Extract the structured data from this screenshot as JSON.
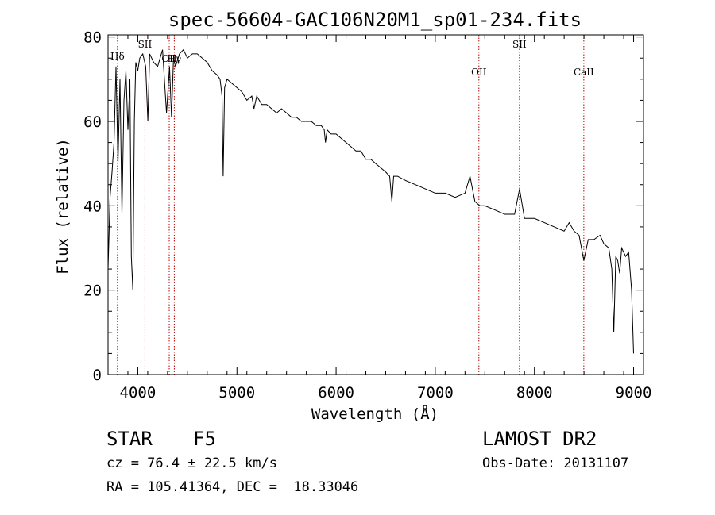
{
  "chart_data": {
    "type": "line",
    "title": "spec-56604-GAC106N20M1_sp01-234.fits",
    "xlabel": "Wavelength (Å)",
    "ylabel": "Flux (relative)",
    "xlim": [
      3700,
      9100
    ],
    "ylim": [
      0,
      80.5
    ],
    "xticks": [
      4000,
      5000,
      6000,
      7000,
      8000,
      9000
    ],
    "yticks": [
      0,
      20,
      40,
      60,
      80
    ],
    "grid": false,
    "series": [
      {
        "x": [
          3700,
          3720,
          3740,
          3760,
          3780,
          3800,
          3820,
          3840,
          3860,
          3880,
          3900,
          3920,
          3935,
          3950,
          3965,
          3980,
          4000,
          4020,
          4050,
          4080,
          4101,
          4120,
          4160,
          4200,
          4250,
          4290,
          4320,
          4340,
          4360,
          4380,
          4420,
          4460,
          4500,
          4550,
          4600,
          4650,
          4700,
          4750,
          4800,
          4830,
          4850,
          4861,
          4875,
          4900,
          4950,
          5000,
          5050,
          5100,
          5150,
          5172,
          5200,
          5250,
          5300,
          5350,
          5400,
          5450,
          5500,
          5550,
          5600,
          5650,
          5700,
          5750,
          5800,
          5850,
          5880,
          5893,
          5910,
          5950,
          6000,
          6050,
          6100,
          6150,
          6200,
          6250,
          6300,
          6350,
          6400,
          6450,
          6500,
          6540,
          6563,
          6580,
          6620,
          6700,
          6800,
          6900,
          7000,
          7100,
          7200,
          7300,
          7350,
          7400,
          7450,
          7500,
          7600,
          7700,
          7800,
          7850,
          7900,
          8000,
          8100,
          8200,
          8300,
          8350,
          8400,
          8450,
          8498,
          8542,
          8600,
          8662,
          8700,
          8750,
          8780,
          8800,
          8820,
          8840,
          8860,
          8880,
          8900,
          8920,
          8950,
          8980,
          9000
        ],
        "y": [
          25,
          42,
          48,
          55,
          73,
          50,
          70,
          38,
          65,
          72,
          58,
          70,
          28,
          20,
          60,
          74,
          72,
          75,
          76,
          73,
          60,
          76,
          74,
          73,
          77,
          62,
          73,
          61,
          75,
          73,
          76,
          77,
          75,
          76,
          76,
          75,
          74,
          72,
          71,
          70,
          66,
          47,
          68,
          70,
          69,
          68,
          67,
          65,
          66,
          63,
          66,
          64,
          64,
          63,
          62,
          63,
          62,
          61,
          61,
          60,
          60,
          60,
          59,
          59,
          58,
          55,
          58,
          57,
          57,
          56,
          55,
          54,
          53,
          53,
          51,
          51,
          50,
          49,
          48,
          47,
          41,
          47,
          47,
          46,
          45,
          44,
          43,
          43,
          42,
          43,
          47,
          41,
          40,
          40,
          39,
          38,
          38,
          44,
          37,
          37,
          36,
          35,
          34,
          36,
          34,
          33,
          27,
          32,
          32,
          33,
          31,
          30,
          25,
          10,
          28,
          27,
          24,
          30,
          29,
          28,
          29,
          20,
          5
        ]
      }
    ],
    "line_markers": [
      {
        "label": "Hδ",
        "x": 3795
      },
      {
        "label": "SII",
        "x": 4072
      },
      {
        "label": "OII",
        "x": 4317
      },
      {
        "label": "Hγ",
        "x": 4368
      },
      {
        "label": "OII",
        "x": 7440
      },
      {
        "label": "SII",
        "x": 7849
      },
      {
        "label": "CaII",
        "x": 8498
      }
    ],
    "marker_color": "#b30000"
  },
  "info": {
    "class_label": "STAR",
    "subclass": "F5",
    "survey": "LAMOST DR2",
    "cz": "cz = 76.4 ± 22.5 km/s",
    "obsdate": "Obs-Date: 20131107",
    "radec": "RA = 105.41364, DEC =  18.33046"
  }
}
